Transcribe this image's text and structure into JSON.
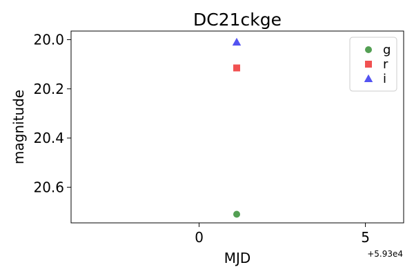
{
  "chart_data": {
    "type": "scatter",
    "title": "DC21ckge",
    "xlabel": "MJD",
    "ylabel": "magnitude",
    "x_offset_text": "+5.93e4",
    "xlim": [
      -3.85,
      6.15
    ],
    "ylim": [
      20.745,
      19.965
    ],
    "y_inverted": true,
    "x_ticks": [
      0,
      5
    ],
    "x_tick_labels": [
      "0",
      "5"
    ],
    "y_ticks": [
      20.0,
      20.2,
      20.4,
      20.6
    ],
    "y_tick_labels": [
      "20.0",
      "20.2",
      "20.4",
      "20.6"
    ],
    "grid": false,
    "legend_position": "top-right",
    "series": [
      {
        "name": "g",
        "marker": "circle",
        "color": "#4a9a4a",
        "points": [
          {
            "x": 1.13,
            "y": 20.71
          }
        ]
      },
      {
        "name": "r",
        "marker": "square",
        "color": "#f04848",
        "points": [
          {
            "x": 1.13,
            "y": 20.115
          }
        ]
      },
      {
        "name": "i",
        "marker": "triangle",
        "color": "#4a4af0",
        "points": [
          {
            "x": 1.13,
            "y": 20.01
          }
        ]
      }
    ]
  }
}
